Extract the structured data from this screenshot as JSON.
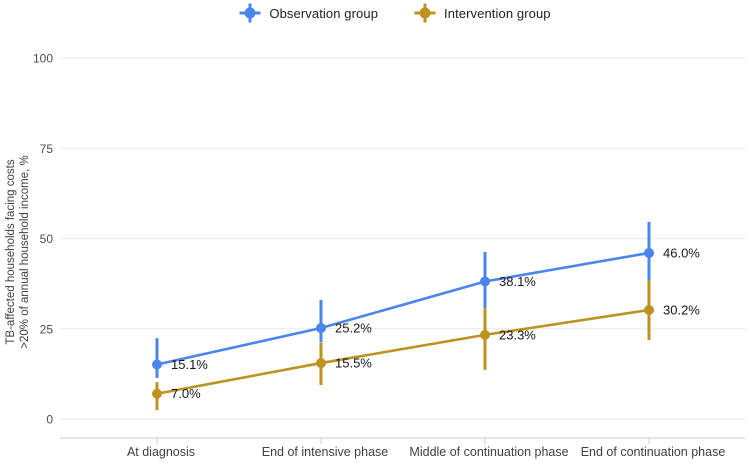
{
  "chart_data": {
    "type": "line",
    "title": "",
    "categories": [
      "At diagnosis",
      "End of intensive phase",
      "Middle of continuation phase",
      "End of continuation phase"
    ],
    "series": [
      {
        "name": "Observation group",
        "color": "#4a85ee",
        "values": [
          15.1,
          25.2,
          38.1,
          46.0
        ],
        "labels": [
          "15.1%",
          "25.2%",
          "38.1%",
          "46.0%"
        ],
        "ci_low": [
          11.4,
          21.2,
          30.7,
          38.5
        ],
        "ci_high": [
          22.4,
          33.0,
          46.3,
          54.6
        ]
      },
      {
        "name": "Intervention group",
        "color": "#bc9220",
        "values": [
          7.0,
          15.5,
          23.3,
          30.2
        ],
        "labels": [
          "7.0%",
          "15.5%",
          "23.3%",
          "30.2%"
        ],
        "ci_low": [
          2.5,
          9.4,
          13.6,
          21.9
        ],
        "ci_high": [
          10.2,
          21.1,
          30.7,
          38.5
        ]
      }
    ],
    "ylabel_line1": "TB-affected households facing costs",
    "ylabel_line2": ">20% of annual household income, %",
    "xlabel": "",
    "yticks": [
      0,
      25,
      50,
      75,
      100
    ],
    "ylim": [
      0,
      100
    ],
    "grid": true,
    "legend_position": "top",
    "colors": {
      "grid": "#e9e9e9",
      "axis": "#cccccc",
      "tick_label": "#4d4d4d",
      "axis_label": "#3f3f3f",
      "y_title": "#3f3f3f",
      "point_label": "#181818"
    }
  }
}
